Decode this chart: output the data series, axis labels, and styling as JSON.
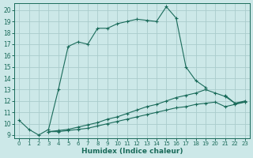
{
  "xlabel": "Humidex (Indice chaleur)",
  "bg_color": "#cce8e8",
  "grid_color": "#aacccc",
  "line_color": "#1a6b5a",
  "xlim": [
    -0.5,
    23.5
  ],
  "ylim": [
    8.7,
    20.6
  ],
  "xticks": [
    0,
    1,
    2,
    3,
    4,
    5,
    6,
    7,
    8,
    9,
    10,
    11,
    12,
    13,
    14,
    15,
    16,
    17,
    18,
    19,
    20,
    21,
    22,
    23
  ],
  "yticks": [
    9,
    10,
    11,
    12,
    13,
    14,
    15,
    16,
    17,
    18,
    19,
    20
  ],
  "line1_x": [
    0,
    1,
    2,
    3,
    4,
    5,
    6,
    7,
    8,
    9,
    10,
    11,
    12,
    13,
    14,
    15,
    16,
    17,
    18,
    19,
    21,
    22,
    23
  ],
  "line1_y": [
    10.3,
    9.5,
    9.0,
    9.5,
    13.0,
    16.8,
    17.2,
    17.0,
    18.4,
    18.4,
    18.8,
    19.0,
    19.2,
    19.1,
    19.0,
    20.3,
    19.3,
    15.0,
    13.8,
    13.2,
    12.5,
    11.8,
    11.9
  ],
  "line2_x": [
    3,
    4,
    5,
    6,
    7,
    8,
    9,
    10,
    11,
    12,
    13,
    14,
    15,
    16,
    17,
    18,
    19,
    20,
    21,
    22,
    23
  ],
  "line2_y": [
    9.3,
    9.4,
    9.5,
    9.7,
    9.9,
    10.1,
    10.4,
    10.6,
    10.9,
    11.2,
    11.5,
    11.7,
    12.0,
    12.3,
    12.5,
    12.7,
    13.0,
    12.7,
    12.4,
    11.8,
    12.0
  ],
  "line3_x": [
    3,
    4,
    5,
    6,
    7,
    8,
    9,
    10,
    11,
    12,
    13,
    14,
    15,
    16,
    17,
    18,
    19,
    20,
    21,
    22,
    23
  ],
  "line3_y": [
    9.3,
    9.3,
    9.4,
    9.5,
    9.6,
    9.8,
    10.0,
    10.2,
    10.4,
    10.6,
    10.8,
    11.0,
    11.2,
    11.4,
    11.5,
    11.7,
    11.8,
    11.9,
    11.5,
    11.7,
    11.9
  ]
}
